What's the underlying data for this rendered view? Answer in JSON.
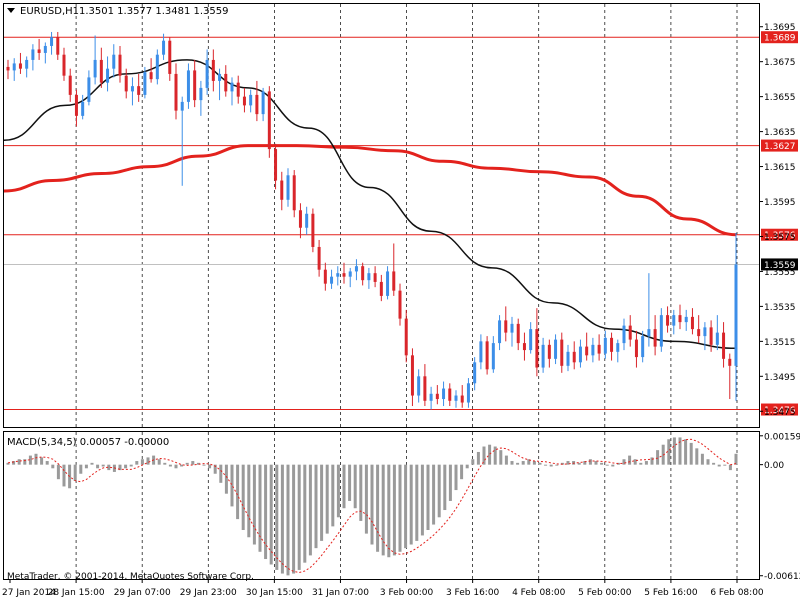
{
  "window": {
    "symbol_label": "EURUSD,H1",
    "ohlc": "1.3501 1.3577 1.3481 1.3559",
    "copyright": "MetaTrader, © 2001-2014, MetaQuotes Software Corp."
  },
  "macd": {
    "label": "MACD(5,34,5) 0.00057 -0.00000",
    "ticks": [
      "0.00159",
      "0.00",
      "-0.00612"
    ],
    "tick_values": [
      0.00159,
      0.0,
      -0.00612
    ]
  },
  "colors": {
    "bull": "#3c8ee8",
    "bear": "#d9262b",
    "ma_slow": "#e3221d",
    "ma_fast": "#111111",
    "hline": "#e3221d",
    "grid": "#000000",
    "histogram": "#9a9a9a",
    "signal": "#e3221d",
    "current_price_line": "#c0c0c0"
  },
  "chart_data": {
    "type": "candlestick",
    "symbol": "EURUSD",
    "timeframe": "H1",
    "y_range": [
      1.3466,
      1.3708
    ],
    "y_ticks": [
      "1.3695",
      "1.3675",
      "1.3655",
      "1.3635",
      "1.3615",
      "1.3595",
      "1.3575",
      "1.3555",
      "1.3535",
      "1.3515",
      "1.3495",
      "1.3475"
    ],
    "y_tick_values": [
      1.3695,
      1.3675,
      1.3655,
      1.3635,
      1.3615,
      1.3595,
      1.3575,
      1.3555,
      1.3535,
      1.3515,
      1.3495,
      1.3475
    ],
    "x_labels": [
      "27 Jan 2014",
      "28 Jan 15:00",
      "29 Jan 07:00",
      "29 Jan 23:00",
      "30 Jan 15:00",
      "31 Jan 07:00",
      "3 Feb 00:00",
      "3 Feb 16:00",
      "4 Feb 08:00",
      "5 Feb 00:00",
      "5 Feb 16:00",
      "6 Feb 08:00"
    ],
    "grid": "vertical-dashed",
    "levels": [
      {
        "label": "1.3689",
        "value": 1.3689
      },
      {
        "label": "1.3627",
        "value": 1.3627
      },
      {
        "label": "1.3576",
        "value": 1.3576
      },
      {
        "label": "1.3476",
        "value": 1.3476
      }
    ],
    "current_price": {
      "label": "1.3559",
      "value": 1.3559
    },
    "ma_slow_path": [
      1.3601,
      1.3607,
      1.3611,
      1.3615,
      1.3621,
      1.3627,
      1.3627,
      1.3626,
      1.3624,
      1.3618,
      1.3614,
      1.3612,
      1.3609,
      1.3598,
      1.3585,
      1.3576
    ],
    "ma_fast_path": [
      1.363,
      1.365,
      1.3668,
      1.3676,
      1.366,
      1.3637,
      1.3603,
      1.3578,
      1.3557,
      1.3537,
      1.3522,
      1.3515,
      1.3511
    ],
    "candles": [
      [
        1.3672,
        1.3676,
        1.3665,
        1.367
      ],
      [
        1.367,
        1.3677,
        1.3664,
        1.3674
      ],
      [
        1.3674,
        1.368,
        1.3668,
        1.3671
      ],
      [
        1.3671,
        1.3678,
        1.3666,
        1.3676
      ],
      [
        1.3676,
        1.3685,
        1.367,
        1.3682
      ],
      [
        1.3682,
        1.3688,
        1.3676,
        1.368
      ],
      [
        1.368,
        1.3686,
        1.3674,
        1.3684
      ],
      [
        1.3684,
        1.3692,
        1.3679,
        1.3689
      ],
      [
        1.3689,
        1.3692,
        1.3676,
        1.3679
      ],
      [
        1.3679,
        1.3683,
        1.3664,
        1.3667
      ],
      [
        1.3667,
        1.3671,
        1.3652,
        1.3656
      ],
      [
        1.3656,
        1.3659,
        1.3638,
        1.3644
      ],
      [
        1.3644,
        1.3656,
        1.3642,
        1.3652
      ],
      [
        1.3652,
        1.367,
        1.365,
        1.3666
      ],
      [
        1.3666,
        1.369,
        1.3662,
        1.3676
      ],
      [
        1.3676,
        1.3683,
        1.366,
        1.3663
      ],
      [
        1.3663,
        1.3678,
        1.3658,
        1.3671
      ],
      [
        1.3671,
        1.3685,
        1.3666,
        1.3679
      ],
      [
        1.3679,
        1.3684,
        1.3663,
        1.3667
      ],
      [
        1.3667,
        1.3671,
        1.3654,
        1.3658
      ],
      [
        1.3658,
        1.3666,
        1.365,
        1.3661
      ],
      [
        1.3661,
        1.3668,
        1.3652,
        1.3656
      ],
      [
        1.3656,
        1.3672,
        1.3654,
        1.3669
      ],
      [
        1.3669,
        1.3677,
        1.3663,
        1.3665
      ],
      [
        1.3665,
        1.3682,
        1.3662,
        1.3679
      ],
      [
        1.3679,
        1.3691,
        1.3676,
        1.3687
      ],
      [
        1.3687,
        1.3689,
        1.3664,
        1.3668
      ],
      [
        1.3668,
        1.3674,
        1.3642,
        1.3647
      ],
      [
        1.3647,
        1.3655,
        1.3604,
        1.3652
      ],
      [
        1.3652,
        1.3674,
        1.3648,
        1.367
      ],
      [
        1.367,
        1.3676,
        1.3649,
        1.3653
      ],
      [
        1.3653,
        1.3664,
        1.3644,
        1.366
      ],
      [
        1.366,
        1.3682,
        1.3656,
        1.3676
      ],
      [
        1.3676,
        1.3682,
        1.3658,
        1.3664
      ],
      [
        1.3664,
        1.3671,
        1.3653,
        1.3668
      ],
      [
        1.3668,
        1.3673,
        1.3655,
        1.3658
      ],
      [
        1.3658,
        1.3666,
        1.365,
        1.3663
      ],
      [
        1.3663,
        1.3667,
        1.3651,
        1.3655
      ],
      [
        1.3655,
        1.366,
        1.3646,
        1.365
      ],
      [
        1.365,
        1.3659,
        1.3646,
        1.3656
      ],
      [
        1.3656,
        1.3664,
        1.3641,
        1.3645
      ],
      [
        1.3645,
        1.366,
        1.3641,
        1.3658
      ],
      [
        1.3658,
        1.3661,
        1.362,
        1.3625
      ],
      [
        1.3625,
        1.3628,
        1.3602,
        1.3607
      ],
      [
        1.3607,
        1.3612,
        1.359,
        1.3596
      ],
      [
        1.3596,
        1.3614,
        1.3592,
        1.361
      ],
      [
        1.361,
        1.3613,
        1.3586,
        1.359
      ],
      [
        1.359,
        1.3594,
        1.3574,
        1.358
      ],
      [
        1.358,
        1.3592,
        1.3576,
        1.3588
      ],
      [
        1.3588,
        1.3591,
        1.3566,
        1.3569
      ],
      [
        1.3569,
        1.3573,
        1.3552,
        1.3556
      ],
      [
        1.3556,
        1.356,
        1.3544,
        1.3548
      ],
      [
        1.3548,
        1.3556,
        1.3545,
        1.3552
      ],
      [
        1.3552,
        1.3558,
        1.3547,
        1.3554
      ],
      [
        1.3554,
        1.356,
        1.3548,
        1.3552
      ],
      [
        1.3552,
        1.3557,
        1.3546,
        1.3555
      ],
      [
        1.3555,
        1.3562,
        1.355,
        1.3558
      ],
      [
        1.3558,
        1.356,
        1.3547,
        1.355
      ],
      [
        1.355,
        1.3557,
        1.3545,
        1.3554
      ],
      [
        1.3554,
        1.3558,
        1.3546,
        1.3549
      ],
      [
        1.3549,
        1.3553,
        1.3538,
        1.3541
      ],
      [
        1.3541,
        1.3558,
        1.3539,
        1.3555
      ],
      [
        1.3555,
        1.3571,
        1.3541,
        1.3544
      ],
      [
        1.3544,
        1.3548,
        1.3524,
        1.3528
      ],
      [
        1.3528,
        1.3533,
        1.3503,
        1.3507
      ],
      [
        1.3507,
        1.3511,
        1.3478,
        1.3484
      ],
      [
        1.3484,
        1.3499,
        1.348,
        1.3495
      ],
      [
        1.3495,
        1.3502,
        1.3478,
        1.3481
      ],
      [
        1.3481,
        1.3489,
        1.3476,
        1.3485
      ],
      [
        1.3485,
        1.349,
        1.3479,
        1.3482
      ],
      [
        1.3482,
        1.3492,
        1.3478,
        1.3488
      ],
      [
        1.3488,
        1.3491,
        1.3478,
        1.3481
      ],
      [
        1.3481,
        1.3487,
        1.3477,
        1.3484
      ],
      [
        1.3484,
        1.349,
        1.3477,
        1.348
      ],
      [
        1.348,
        1.3494,
        1.3477,
        1.3491
      ],
      [
        1.3491,
        1.3506,
        1.3487,
        1.3503
      ],
      [
        1.3503,
        1.3519,
        1.3499,
        1.3515
      ],
      [
        1.3515,
        1.3518,
        1.3496,
        1.3499
      ],
      [
        1.3499,
        1.3518,
        1.3497,
        1.3514
      ],
      [
        1.3514,
        1.353,
        1.351,
        1.3527
      ],
      [
        1.3527,
        1.3535,
        1.3515,
        1.352
      ],
      [
        1.352,
        1.3529,
        1.3512,
        1.3525
      ],
      [
        1.3525,
        1.3528,
        1.351,
        1.3514
      ],
      [
        1.3514,
        1.352,
        1.3504,
        1.351
      ],
      [
        1.351,
        1.3526,
        1.3508,
        1.3522
      ],
      [
        1.3522,
        1.3534,
        1.3495,
        1.35
      ],
      [
        1.35,
        1.3517,
        1.3497,
        1.3513
      ],
      [
        1.3513,
        1.3516,
        1.35,
        1.3505
      ],
      [
        1.3505,
        1.3519,
        1.3502,
        1.3516
      ],
      [
        1.3516,
        1.352,
        1.3497,
        1.3501
      ],
      [
        1.3501,
        1.3513,
        1.3498,
        1.3509
      ],
      [
        1.3509,
        1.3515,
        1.3499,
        1.3503
      ],
      [
        1.3503,
        1.3516,
        1.35,
        1.3512
      ],
      [
        1.3512,
        1.352,
        1.3504,
        1.3507
      ],
      [
        1.3507,
        1.3517,
        1.3503,
        1.3513
      ],
      [
        1.3513,
        1.3519,
        1.3504,
        1.3508
      ],
      [
        1.3508,
        1.3521,
        1.3505,
        1.3517
      ],
      [
        1.3517,
        1.352,
        1.3504,
        1.3509
      ],
      [
        1.3509,
        1.3516,
        1.3503,
        1.3514
      ],
      [
        1.3514,
        1.3528,
        1.351,
        1.3524
      ],
      [
        1.3524,
        1.353,
        1.3512,
        1.3516
      ],
      [
        1.3516,
        1.3521,
        1.35,
        1.3506
      ],
      [
        1.3506,
        1.3521,
        1.3503,
        1.3518
      ],
      [
        1.3518,
        1.3554,
        1.3512,
        1.3522
      ],
      [
        1.3522,
        1.353,
        1.3507,
        1.3512
      ],
      [
        1.3512,
        1.3534,
        1.3509,
        1.353
      ],
      [
        1.353,
        1.3535,
        1.352,
        1.3524
      ],
      [
        1.3524,
        1.3533,
        1.3519,
        1.353
      ],
      [
        1.353,
        1.3536,
        1.3522,
        1.3526
      ],
      [
        1.3526,
        1.3533,
        1.3521,
        1.3529
      ],
      [
        1.3529,
        1.3534,
        1.3519,
        1.3522
      ],
      [
        1.3522,
        1.353,
        1.3514,
        1.3518
      ],
      [
        1.3518,
        1.3526,
        1.351,
        1.3523
      ],
      [
        1.3523,
        1.3527,
        1.3509,
        1.3513
      ],
      [
        1.3513,
        1.353,
        1.351,
        1.352
      ],
      [
        1.352,
        1.3526,
        1.35,
        1.3505
      ],
      [
        1.3505,
        1.3508,
        1.3482,
        1.3501
      ],
      [
        1.3501,
        1.3577,
        1.3481,
        1.3559
      ]
    ],
    "macd_histogram": [
      0.0001,
      0.0002,
      0.0003,
      0.0003,
      0.0005,
      0.0006,
      0.0004,
      0.0002,
      -0.0002,
      -0.0008,
      -0.0012,
      -0.0013,
      -0.0009,
      -0.0005,
      -0.0002,
      0.0001,
      -0.0002,
      -0.0001,
      -0.0003,
      -0.0004,
      -0.0003,
      -0.0002,
      -0.0001,
      0.0002,
      0.0003,
      0.0004,
      0.0005,
      0.0003,
      0.0001,
      -0.0001,
      -0.0002,
      -0.0001,
      0.0001,
      0.0002,
      0.0001,
      0.0,
      -0.0002,
      -0.0005,
      -0.001,
      -0.0016,
      -0.0023,
      -0.003,
      -0.0036,
      -0.004,
      -0.0044,
      -0.0048,
      -0.0052,
      -0.0055,
      -0.0058,
      -0.006,
      -0.0061,
      -0.006,
      -0.0058,
      -0.0054,
      -0.005,
      -0.0046,
      -0.0042,
      -0.0038,
      -0.0034,
      -0.0029,
      -0.0024,
      -0.002,
      -0.0024,
      -0.0031,
      -0.0038,
      -0.0044,
      -0.0048,
      -0.005,
      -0.0051,
      -0.005,
      -0.0048,
      -0.0046,
      -0.0044,
      -0.0042,
      -0.0039,
      -0.0036,
      -0.0033,
      -0.0029,
      -0.0025,
      -0.002,
      -0.0014,
      -0.0008,
      -0.0002,
      0.0003,
      0.0007,
      0.001,
      0.0011,
      0.001,
      0.0008,
      0.0005,
      0.0002,
      0.0001,
      0.0002,
      0.0003,
      0.0002,
      0.0001,
      0.0,
      -0.0001,
      0.0,
      0.0001,
      0.0002,
      0.0002,
      0.0001,
      0.0002,
      0.0003,
      0.0002,
      0.0001,
      0.0,
      -0.0001,
      0.0001,
      0.0003,
      0.0005,
      0.0003,
      0.0001,
      0.0002,
      0.0004,
      0.0008,
      0.0011,
      0.0014,
      0.0015,
      0.0015,
      0.0014,
      0.0012,
      0.0009,
      0.0006,
      0.0003,
      0.0001,
      -0.0001,
      0.0,
      -0.0003,
      0.0006
    ]
  }
}
